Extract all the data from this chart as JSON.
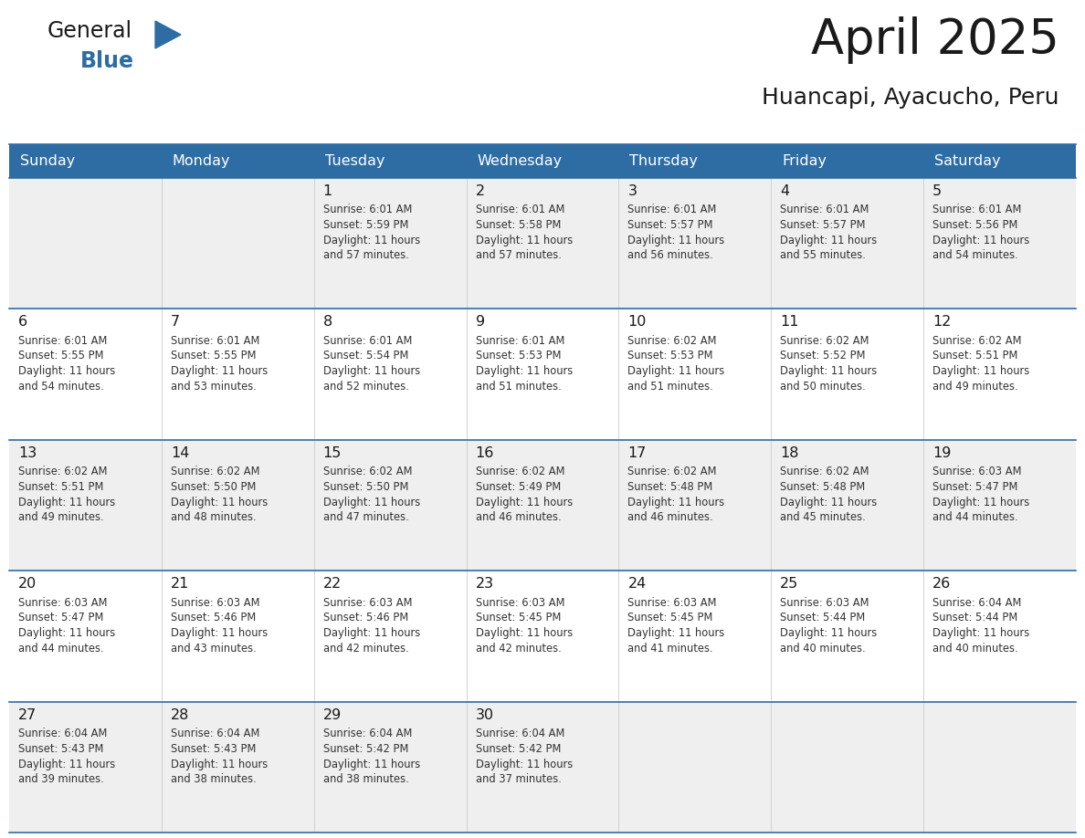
{
  "title": "April 2025",
  "subtitle": "Huancapi, Ayacucho, Peru",
  "header_bg": "#2E6DA4",
  "header_text": "#FFFFFF",
  "cell_bg_even": "#EFEFEF",
  "cell_bg_odd": "#FFFFFF",
  "row_line_color": "#2E6DA4",
  "text_color": "#333333",
  "days_of_week": [
    "Sunday",
    "Monday",
    "Tuesday",
    "Wednesday",
    "Thursday",
    "Friday",
    "Saturday"
  ],
  "calendar_data": [
    [
      "",
      "",
      "1",
      "2",
      "3",
      "4",
      "5"
    ],
    [
      "6",
      "7",
      "8",
      "9",
      "10",
      "11",
      "12"
    ],
    [
      "13",
      "14",
      "15",
      "16",
      "17",
      "18",
      "19"
    ],
    [
      "20",
      "21",
      "22",
      "23",
      "24",
      "25",
      "26"
    ],
    [
      "27",
      "28",
      "29",
      "30",
      "",
      "",
      ""
    ]
  ],
  "sunrise_data": [
    [
      "",
      "",
      "6:01 AM",
      "6:01 AM",
      "6:01 AM",
      "6:01 AM",
      "6:01 AM"
    ],
    [
      "6:01 AM",
      "6:01 AM",
      "6:01 AM",
      "6:01 AM",
      "6:02 AM",
      "6:02 AM",
      "6:02 AM"
    ],
    [
      "6:02 AM",
      "6:02 AM",
      "6:02 AM",
      "6:02 AM",
      "6:02 AM",
      "6:02 AM",
      "6:03 AM"
    ],
    [
      "6:03 AM",
      "6:03 AM",
      "6:03 AM",
      "6:03 AM",
      "6:03 AM",
      "6:03 AM",
      "6:04 AM"
    ],
    [
      "6:04 AM",
      "6:04 AM",
      "6:04 AM",
      "6:04 AM",
      "",
      "",
      ""
    ]
  ],
  "sunset_data": [
    [
      "",
      "",
      "5:59 PM",
      "5:58 PM",
      "5:57 PM",
      "5:57 PM",
      "5:56 PM"
    ],
    [
      "5:55 PM",
      "5:55 PM",
      "5:54 PM",
      "5:53 PM",
      "5:53 PM",
      "5:52 PM",
      "5:51 PM"
    ],
    [
      "5:51 PM",
      "5:50 PM",
      "5:50 PM",
      "5:49 PM",
      "5:48 PM",
      "5:48 PM",
      "5:47 PM"
    ],
    [
      "5:47 PM",
      "5:46 PM",
      "5:46 PM",
      "5:45 PM",
      "5:45 PM",
      "5:44 PM",
      "5:44 PM"
    ],
    [
      "5:43 PM",
      "5:43 PM",
      "5:42 PM",
      "5:42 PM",
      "",
      "",
      ""
    ]
  ],
  "daylight_minutes": [
    [
      "",
      "",
      "57",
      "57",
      "56",
      "55",
      "54"
    ],
    [
      "54",
      "53",
      "52",
      "51",
      "51",
      "50",
      "49"
    ],
    [
      "49",
      "48",
      "47",
      "46",
      "46",
      "45",
      "44"
    ],
    [
      "44",
      "43",
      "42",
      "42",
      "41",
      "40",
      "40"
    ],
    [
      "39",
      "38",
      "38",
      "37",
      "",
      "",
      ""
    ]
  ]
}
